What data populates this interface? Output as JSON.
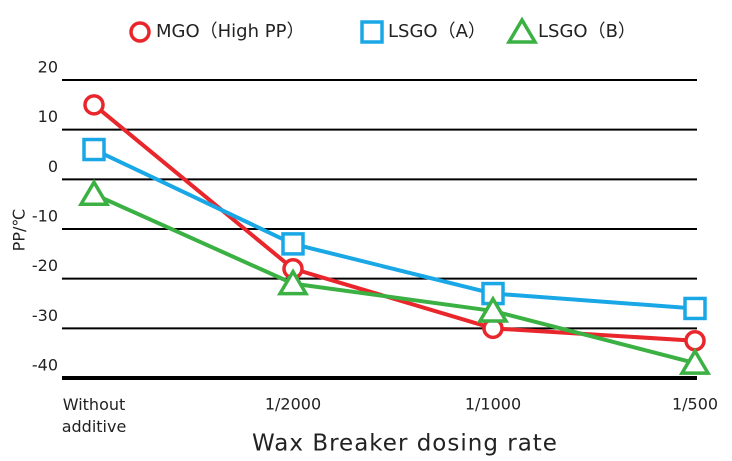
{
  "chart_data": {
    "type": "line",
    "x_label": "Wax Breaker dosing rate",
    "y_label": "PP/℃",
    "categories": [
      "Without additive",
      "1/2000",
      "1/1000",
      "1/500"
    ],
    "series": [
      {
        "name": "MGO（High PP）",
        "color": "#e8262b",
        "values": [
          15,
          -18,
          -30,
          -32.5
        ]
      },
      {
        "name": "LSGO（A）",
        "color": "#1aa7e6",
        "values": [
          6,
          -13,
          -23,
          -26
        ]
      },
      {
        "name": "LSGO（B）",
        "color": "#3bb043",
        "values": [
          -3,
          -21,
          -26.5,
          -37
        ]
      }
    ],
    "ylim": [
      -40,
      20
    ],
    "yticks": [
      -40,
      -30,
      -20,
      -10,
      0,
      10,
      20
    ],
    "grid": true,
    "legend": "top"
  }
}
